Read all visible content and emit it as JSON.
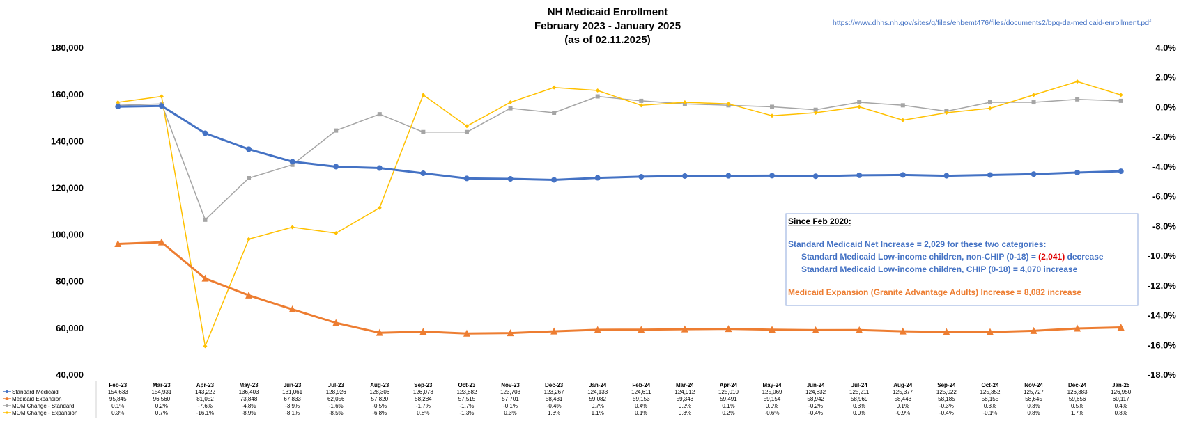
{
  "title": {
    "line1": "NH Medicaid Enrollment",
    "line2": "February 2023 - January 2025",
    "line3": "(as of 02.11.2025)"
  },
  "source_url": "https://www.dhhs.nh.gov/sites/g/files/ehbemt476/files/documents2/bpq-da-medicaid-enrollment.pdf",
  "note": {
    "heading": "Since Feb 2020:",
    "line1": "Standard Medicaid Net Increase = 2,029 for these two categories:",
    "line2_pre": "Standard Medicaid Low-income children, non-CHIP (0-18) = ",
    "line2_red": "(2,041)",
    "line2_post": " decrease",
    "line3": "Standard Medicaid Low-income children, CHIP (0-18) = 4,070 increase",
    "line4": "Medicaid Expansion (Granite Advantage Adults) Increase = 8,082 increase"
  },
  "colors": {
    "standard": "#4472c4",
    "expansion": "#ed7d31",
    "mom_standard": "#a5a5a5",
    "mom_expansion": "#ffc000",
    "note_text": "#4472c4",
    "note_orange": "#ed7d31",
    "note_red": "#e00000",
    "note_border": "#8faadc"
  },
  "chart_data": {
    "type": "line",
    "categories": [
      "Feb-23",
      "Mar-23",
      "Apr-23",
      "May-23",
      "Jun-23",
      "Jul-23",
      "Aug-23",
      "Sep-23",
      "Oct-23",
      "Nov-23",
      "Dec-23",
      "Jan-24",
      "Feb-24",
      "Mar-24",
      "Apr-24",
      "May-24",
      "Jun-24",
      "Jul-24",
      "Aug-24",
      "Sep-24",
      "Oct-24",
      "Nov-24",
      "Dec-24",
      "Jan-25"
    ],
    "y_left": {
      "ylim": [
        40000,
        180000
      ],
      "ticks": [
        "180,000",
        "160,000",
        "140,000",
        "120,000",
        "100,000",
        "80,000",
        "60,000",
        "40,000"
      ]
    },
    "y_right": {
      "ylim": [
        -18,
        4
      ],
      "ticks": [
        "4.0%",
        "2.0%",
        "0.0%",
        "-2.0%",
        "-4.0%",
        "-6.0%",
        "-8.0%",
        "-10.0%",
        "-12.0%",
        "-14.0%",
        "-16.0%",
        "-18.0%"
      ]
    },
    "series": [
      {
        "name": "Standard Medicaid",
        "axis": "left",
        "marker": "circle",
        "color_key": "standard",
        "values": [
          154633,
          154931,
          143222,
          136403,
          131061,
          128926,
          128306,
          126073,
          123882,
          123703,
          123267,
          124133,
          124611,
          124912,
          125010,
          125069,
          124832,
          125211,
          125377,
          125022,
          125352,
          125727,
          126383,
          126950
        ],
        "labels": [
          "154,633",
          "154,931",
          "143,222",
          "136,403",
          "131,061",
          "128,926",
          "128,306",
          "126,073",
          "123,882",
          "123,703",
          "123,267",
          "124,133",
          "124,611",
          "124,912",
          "125,010",
          "125,069",
          "124,832",
          "125,211",
          "125,377",
          "125,022",
          "125,352",
          "125,727",
          "126,383",
          "126,950"
        ]
      },
      {
        "name": "Medicaid Expansion",
        "axis": "left",
        "marker": "triangle",
        "color_key": "expansion",
        "values": [
          95845,
          96560,
          81052,
          73848,
          67833,
          62056,
          57820,
          58284,
          57515,
          57701,
          58431,
          59082,
          59153,
          59343,
          59491,
          59154,
          58942,
          58969,
          58443,
          58185,
          58155,
          58645,
          59656,
          60117
        ],
        "labels": [
          "95,845",
          "96,560",
          "81,052",
          "73,848",
          "67,833",
          "62,056",
          "57,820",
          "58,284",
          "57,515",
          "57,701",
          "58,431",
          "59,082",
          "59,153",
          "59,343",
          "59,491",
          "59,154",
          "58,942",
          "58,969",
          "58,443",
          "58,185",
          "58,155",
          "58,645",
          "59,656",
          "60,117"
        ]
      },
      {
        "name": "MOM Change - Standard",
        "axis": "right",
        "marker": "square",
        "color_key": "mom_standard",
        "values": [
          0.1,
          0.2,
          -7.6,
          -4.8,
          -3.9,
          -1.6,
          -0.5,
          -1.7,
          -1.7,
          -0.1,
          -0.4,
          0.7,
          0.4,
          0.2,
          0.1,
          0.0,
          -0.2,
          0.3,
          0.1,
          -0.3,
          0.3,
          0.3,
          0.5,
          0.4
        ],
        "labels": [
          "0.1%",
          "0.2%",
          "-7.6%",
          "-4.8%",
          "-3.9%",
          "-1.6%",
          "-0.5%",
          "-1.7%",
          "-1.7%",
          "-0.1%",
          "-0.4%",
          "0.7%",
          "0.4%",
          "0.2%",
          "0.1%",
          "0.0%",
          "-0.2%",
          "0.3%",
          "0.1%",
          "-0.3%",
          "0.3%",
          "0.3%",
          "0.5%",
          "0.4%"
        ]
      },
      {
        "name": "MOM Change - Expansion",
        "axis": "right",
        "marker": "diamond",
        "color_key": "mom_expansion",
        "values": [
          0.3,
          0.7,
          -16.1,
          -8.9,
          -8.1,
          -8.5,
          -6.8,
          0.8,
          -1.3,
          0.3,
          1.3,
          1.1,
          0.1,
          0.3,
          0.2,
          -0.6,
          -0.4,
          0.0,
          -0.9,
          -0.4,
          -0.1,
          0.8,
          1.7,
          0.8
        ],
        "labels": [
          "0.3%",
          "0.7%",
          "-16.1%",
          "-8.9%",
          "-8.1%",
          "-8.5%",
          "-6.8%",
          "0.8%",
          "-1.3%",
          "0.3%",
          "1.3%",
          "1.1%",
          "0.1%",
          "0.3%",
          "0.2%",
          "-0.6%",
          "-0.4%",
          "0.0%",
          "-0.9%",
          "-0.4%",
          "-0.1%",
          "0.8%",
          "1.7%",
          "0.8%"
        ]
      }
    ],
    "grid": false,
    "legend": "data-table-bottom"
  }
}
